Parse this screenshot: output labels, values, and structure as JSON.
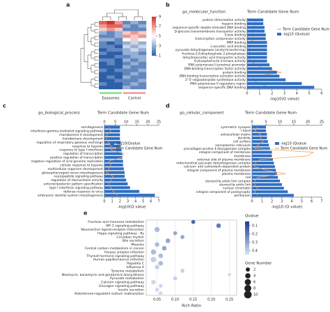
{
  "chart_data": [
    {
      "type": "heatmap",
      "label": "a",
      "groups": [
        {
          "name": "Exosomes",
          "color": "#9be39b"
        },
        {
          "name": "Control",
          "color": "#f0a8a8"
        }
      ],
      "clim": [
        1,
        9
      ],
      "cticks": [
        1,
        3,
        5,
        7,
        9
      ],
      "matrix": [
        [
          8,
          9,
          7,
          2,
          3,
          2
        ],
        [
          7,
          8,
          8,
          3,
          2,
          3
        ],
        [
          6,
          7,
          6,
          2,
          2,
          2
        ],
        [
          3,
          2,
          3,
          6,
          7,
          6
        ],
        [
          2,
          2,
          3,
          7,
          6,
          7
        ],
        [
          3,
          3,
          2,
          5,
          6,
          5
        ],
        [
          2,
          1,
          2,
          3,
          4,
          3
        ],
        [
          2,
          2,
          1,
          4,
          3,
          4
        ],
        [
          1,
          2,
          2,
          3,
          4,
          3
        ],
        [
          2,
          1,
          1,
          3,
          3,
          2
        ],
        [
          1,
          1,
          2,
          2,
          3,
          3
        ],
        [
          2,
          2,
          1,
          3,
          2,
          3
        ],
        [
          1,
          2,
          1,
          2,
          3,
          2
        ],
        [
          1,
          1,
          1,
          3,
          2,
          2
        ],
        [
          2,
          1,
          2,
          2,
          2,
          3
        ],
        [
          1,
          1,
          1,
          2,
          3,
          2
        ],
        [
          1,
          2,
          1,
          3,
          2,
          2
        ],
        [
          1,
          1,
          2,
          2,
          2,
          3
        ],
        [
          2,
          1,
          1,
          2,
          3,
          2
        ],
        [
          1,
          1,
          1,
          3,
          2,
          2
        ]
      ]
    },
    {
      "type": "hbar",
      "label": "b",
      "title": "go_molecular_function",
      "x2label": "Term Candidate Gene Num",
      "categories": [
        "protein dimerization activity",
        "heparin binding",
        "sequence-specific double-stranded DNA binding",
        "D-glucose transmembrane transporter activity",
        "E-box binding",
        "transcription corepressor activity",
        "MRF binding",
        "L-ascorbic acid binding",
        "pyruvate dehydrogenase (acetyl-transferring)",
        "fructose-2,6-bisphosphate 2-phosphatase",
        "dehydroascorbic acid transporter activity",
        "6-phosphofructo-2-kinase activity",
        "RNA polymerase II proximal promoter",
        "DNA-binding transcription factor activity",
        "protein binding",
        "DNA-binding transcription activator activity",
        "2'-5'-oligoadenylate synthetase activity",
        "RNA polymerase II regulatory region",
        "sequence-specific DNA binding"
      ],
      "series": [
        {
          "name": "Term Candidate Gene Num",
          "color": "#f4a460",
          "axis": "x2",
          "values": [
            4,
            3,
            3,
            2,
            2,
            3,
            1,
            1,
            1,
            1,
            1,
            1,
            4,
            6,
            14,
            3,
            2,
            5,
            9
          ]
        },
        {
          "name": "-log10 (Qvalue)",
          "color": "#2f6fc4",
          "values": [
            1.3,
            1.3,
            1.4,
            1.4,
            1.5,
            1.5,
            1.6,
            1.6,
            1.6,
            1.6,
            1.6,
            1.6,
            1.8,
            2.0,
            2.4,
            2.6,
            3.1,
            4.4,
            5.4
          ]
        }
      ],
      "xlabel": "-log10(Q value)",
      "xlim": [
        0,
        6
      ],
      "xticks": [
        0,
        1,
        2,
        3,
        4,
        5,
        6
      ],
      "x2lim": [
        0,
        30
      ]
    },
    {
      "type": "hbar",
      "label": "c",
      "title": "go_biological_process",
      "x2label": "Term Candidate Gene Num",
      "categories": [
        "somitogenesis",
        "interferon-gamma-mediated signaling pathway",
        "rhombomere 4 development",
        "rhombomere development",
        "regulation of respiratory gaseous exchange",
        "response to hypoxia",
        "response to type I interferon",
        "regulation of transcription",
        "positive regulation of transcription",
        "negative regulation of viral genome replication",
        "cellular response to hypoxia",
        "multicellular organism development",
        "glossopharyngeal nerve morphogenesis",
        "neuropeptide signaling pathway",
        "regulation of ribonuclease activity",
        "anterior/posterior pattern specification",
        "type I interferon signaling pathway",
        "defense response to virus",
        "embryonic skeletal system morphogenesis"
      ],
      "series": [
        {
          "name": "-log10(Qvalue",
          "color": "#2f6fc4",
          "values": [
            2.0,
            2.0,
            2.0,
            2.0,
            2.1,
            2.1,
            2.2,
            2.3,
            2.3,
            2.4,
            2.4,
            2.5,
            2.6,
            2.6,
            2.8,
            3.0,
            3.3,
            4.5,
            6.5
          ]
        },
        {
          "name": "Term Candidate Gene Num",
          "color": "#f4a460",
          "axis": "x2",
          "values": [
            2,
            3,
            1,
            1,
            2,
            3,
            3,
            9,
            8,
            2,
            3,
            2,
            1,
            4,
            3,
            2,
            3,
            4,
            6
          ]
        }
      ],
      "xlabel": "-log10(Q value",
      "xlim": [
        0,
        7
      ],
      "xticks": [
        0,
        1,
        2,
        3,
        4,
        5,
        6,
        7
      ],
      "x2lim": [
        0,
        25
      ],
      "x2ticks": [
        0,
        5,
        10,
        15,
        20,
        25
      ]
    },
    {
      "type": "hbar",
      "label": "d",
      "title": "go_cellular_component",
      "x2label": "Term Candidate Gene Num",
      "categories": [
        "symmetric synapse",
        "I band",
        "extracellular matrix",
        "dendrite",
        "cell surface",
        "sarcoplasmic reticulum",
        "procollagen-proline 4-dioxygenase complex",
        "integral component of membrane",
        "membrane",
        "external side of plasma membrane",
        "mitochondrial pyruvate dehydrogenase complex",
        "calcium- and calmodulin-dependent protein",
        "integral component of plasma membrane",
        "plasma membrane",
        "cell",
        "stereocilia ankle link complex",
        "stereocilia ankle link",
        "nuclear chromatin",
        "integral component of postsynaptic",
        "perikaryon"
      ],
      "series": [
        {
          "name": "-log10 (Qvalue",
          "color": "#2f6fc4",
          "values": [
            1.4,
            1.4,
            1.5,
            1.5,
            1.6,
            1.7,
            1.8,
            2.0,
            2.0,
            2.1,
            2.2,
            2.3,
            2.4,
            2.5,
            2.6,
            2.8,
            3.0,
            3.2,
            3.6,
            4.2
          ]
        },
        {
          "name": "Term Candidate Gene Num",
          "color": "#f4a460",
          "axis": "x2",
          "values": [
            2,
            1,
            3,
            3,
            4,
            2,
            1,
            22,
            20,
            3,
            1,
            1,
            5,
            12,
            2,
            1,
            1,
            2,
            1,
            2
          ]
        }
      ],
      "xlabel": "-log10 (Q value)",
      "xlim": [
        0,
        7
      ],
      "xticks": [
        0,
        1,
        2,
        3,
        4,
        5,
        6,
        7
      ],
      "x2lim": [
        0,
        25
      ],
      "x2ticks": [
        0,
        5,
        10,
        15,
        20,
        25
      ]
    },
    {
      "type": "bubble",
      "label": "e",
      "categories": [
        "Fructose and mannose metabolism",
        "HIF-1 signaling pathway",
        "Neuroactive ligand-receptor interaction",
        "Hippo signaling pathway - fly",
        "Circadian rhythm",
        "Bile secretion",
        "Measles",
        "Central carbon metabolism in cancer",
        "Herpes simplex infection",
        "Thyroid hormone signaling pathway",
        "Human papillomavirus infection",
        "Hepatitis C",
        "Influenza A",
        "Tyrosine metabolism",
        "Neomycin, kanamycin and gentamicin biosynthesis",
        "Pyruvate metabolism",
        "Calcium signaling pathway",
        "Glucagon signaling pathway",
        "Insulin secretion",
        "Aldosterone-regulated sodium reabsorption"
      ],
      "x": [
        0.15,
        0.22,
        0.05,
        0.1,
        0.12,
        0.08,
        0.05,
        0.07,
        0.04,
        0.06,
        0.04,
        0.06,
        0.05,
        0.12,
        0.25,
        0.1,
        0.04,
        0.06,
        0.05,
        0.06
      ],
      "qvalue": [
        0.15,
        0.2,
        0.35,
        0.3,
        0.3,
        0.3,
        0.35,
        0.3,
        0.35,
        0.35,
        0.4,
        0.35,
        0.4,
        0.4,
        0.42,
        0.4,
        0.42,
        0.42,
        0.42,
        0.42
      ],
      "gene_number": [
        2,
        3,
        4,
        2,
        2,
        3,
        3,
        3,
        4,
        3,
        5,
        3,
        3,
        2,
        1,
        2,
        3,
        2,
        2,
        2
      ],
      "xlabel": "Rich Ratio",
      "xlim": [
        0.02,
        0.27
      ],
      "xticks": [
        0.05,
        {
          "value": 0.1,
          "label": "0.10"
        },
        0.15,
        {
          "value": 0.2,
          "label": "0.20"
        },
        0.25
      ],
      "qtitle": "Qvalue",
      "qlim": [
        0.05,
        0.45
      ],
      "qticks": [
        0.1,
        0.2,
        0.3,
        0.4
      ],
      "size_title": "Gene Number",
      "size_ticks": [
        2,
        4,
        6,
        8,
        10
      ]
    }
  ]
}
